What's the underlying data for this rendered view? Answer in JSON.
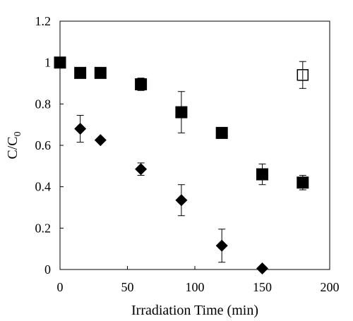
{
  "chart_data": {
    "type": "scatter",
    "xlabel": "Irradiation Time (min)",
    "ylabel": {
      "main": "C/C",
      "subscript": "0"
    },
    "xlim": [
      0,
      200
    ],
    "ylim": [
      0,
      1.2
    ],
    "xticks": [
      0,
      50,
      100,
      150,
      200
    ],
    "yticks": [
      0,
      0.2,
      0.4,
      0.6,
      0.8,
      1,
      1.2
    ],
    "xtick_labels": [
      "0",
      "50",
      "100",
      "150",
      "200"
    ],
    "ytick_labels": [
      "0",
      "0.2",
      "0.4",
      "0.6",
      "0.8",
      "1",
      "1.2"
    ],
    "grid": false,
    "series": [
      {
        "marker": "filled-square",
        "color": "#000000",
        "points": [
          {
            "x": 0,
            "y": 1.0,
            "err": 0.0
          },
          {
            "x": 15,
            "y": 0.95,
            "err": 0.0
          },
          {
            "x": 30,
            "y": 0.95,
            "err": 0.015
          },
          {
            "x": 60,
            "y": 0.895,
            "err": 0.03
          },
          {
            "x": 90,
            "y": 0.76,
            "err": 0.1
          },
          {
            "x": 120,
            "y": 0.66,
            "err": 0.0
          },
          {
            "x": 150,
            "y": 0.46,
            "err": 0.05
          },
          {
            "x": 180,
            "y": 0.42,
            "err": 0.035
          }
        ]
      },
      {
        "marker": "filled-diamond",
        "color": "#000000",
        "points": [
          {
            "x": 15,
            "y": 0.68,
            "err": 0.065
          },
          {
            "x": 30,
            "y": 0.625,
            "err": 0.0
          },
          {
            "x": 60,
            "y": 0.485,
            "err": 0.03
          },
          {
            "x": 90,
            "y": 0.335,
            "err": 0.075
          },
          {
            "x": 120,
            "y": 0.115,
            "err": 0.08
          },
          {
            "x": 150,
            "y": 0.005,
            "err": 0.0
          }
        ]
      },
      {
        "marker": "open-square",
        "color": "#000000",
        "points": [
          {
            "x": 180,
            "y": 0.94,
            "err": 0.065
          }
        ]
      }
    ]
  }
}
